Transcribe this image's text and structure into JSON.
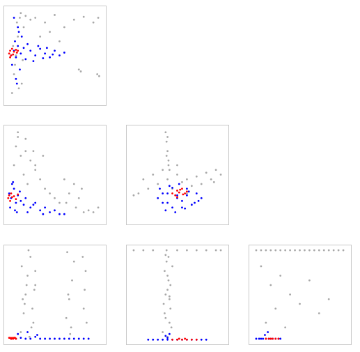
{
  "chart_data": [
    {
      "type": "scatter",
      "xlim": [
        0,
        100
      ],
      "ylim": [
        0,
        100
      ],
      "series": [
        {
          "color": "#a8a8a8",
          "x": [
            6,
            8,
            10,
            12,
            14,
            16,
            18,
            7,
            9,
            11,
            13,
            15,
            17,
            20,
            25,
            30,
            40,
            50,
            60,
            70,
            80,
            90,
            95,
            75,
            77,
            94,
            96,
            35,
            45,
            55
          ],
          "y": [
            10,
            30,
            50,
            70,
            90,
            20,
            80,
            60,
            40,
            85,
            15,
            95,
            45,
            92,
            88,
            90,
            85,
            93,
            80,
            88,
            91,
            85,
            90,
            35,
            33,
            30,
            28,
            70,
            75,
            65
          ]
        },
        {
          "color": "#0000ff",
          "x": [
            5,
            8,
            10,
            12,
            15,
            18,
            20,
            25,
            30,
            35,
            40,
            45,
            50,
            55,
            60,
            10,
            12,
            14,
            16,
            22,
            28,
            33,
            38,
            42,
            48,
            8,
            11,
            13,
            6,
            9
          ],
          "y": [
            50,
            55,
            48,
            60,
            52,
            58,
            46,
            55,
            50,
            57,
            52,
            48,
            55,
            50,
            53,
            25,
            80,
            35,
            70,
            62,
            44,
            60,
            47,
            58,
            51,
            90,
            20,
            75,
            40,
            65
          ]
        },
        {
          "color": "#ff0000",
          "x": [
            3,
            4,
            5,
            6,
            8,
            10,
            11,
            12,
            4,
            7
          ],
          "y": [
            52,
            55,
            50,
            57,
            54,
            56,
            53,
            55,
            48,
            51
          ]
        }
      ]
    },
    {
      "type": "scatter",
      "xlim": [
        0,
        100
      ],
      "ylim": [
        0,
        100
      ],
      "series": [
        {
          "color": "#a8a8a8",
          "x": [
            8,
            10,
            12,
            15,
            18,
            20,
            22,
            25,
            28,
            30,
            35,
            38,
            40,
            60,
            62,
            65,
            70,
            72,
            75,
            78,
            80,
            95,
            12,
            20,
            30,
            45,
            50,
            55,
            85,
            90
          ],
          "y": [
            60,
            80,
            95,
            70,
            50,
            88,
            40,
            65,
            75,
            55,
            45,
            70,
            35,
            45,
            20,
            30,
            40,
            15,
            25,
            35,
            10,
            15,
            90,
            75,
            60,
            30,
            25,
            20,
            12,
            10
          ]
        },
        {
          "color": "#0000ff",
          "x": [
            3,
            5,
            8,
            10,
            12,
            15,
            18,
            20,
            25,
            30,
            35,
            40,
            45,
            50,
            55,
            60,
            6,
            9,
            14,
            22,
            28,
            38,
            4,
            7,
            11
          ],
          "y": [
            30,
            25,
            35,
            20,
            28,
            22,
            18,
            25,
            15,
            20,
            12,
            15,
            10,
            12,
            8,
            8,
            40,
            12,
            32,
            10,
            18,
            8,
            15,
            42,
            10
          ]
        },
        {
          "color": "#ff0000",
          "x": [
            2,
            3,
            4,
            5,
            6,
            8,
            10,
            12
          ],
          "y": [
            25,
            28,
            22,
            30,
            26,
            27,
            24,
            29
          ]
        }
      ]
    },
    {
      "type": "scatter",
      "xlim": [
        0,
        100
      ],
      "ylim": [
        0,
        100
      ],
      "series": [
        {
          "color": "#a8a8a8",
          "x": [
            38,
            39,
            40,
            41,
            42,
            40,
            39,
            41,
            40,
            10,
            20,
            30,
            50,
            60,
            70,
            80,
            90,
            95,
            15,
            25,
            55,
            65,
            75,
            85,
            5,
            45,
            35,
            50,
            60,
            88
          ],
          "y": [
            95,
            85,
            75,
            65,
            55,
            90,
            70,
            60,
            45,
            30,
            35,
            40,
            50,
            45,
            48,
            52,
            55,
            50,
            45,
            50,
            42,
            38,
            40,
            45,
            28,
            35,
            55,
            60,
            30,
            42
          ]
        },
        {
          "color": "#0000ff",
          "x": [
            30,
            35,
            40,
            45,
            50,
            55,
            60,
            65,
            70,
            75,
            32,
            38,
            42,
            48,
            52,
            58,
            62,
            68,
            72,
            40,
            45,
            50,
            55,
            60,
            35
          ],
          "y": [
            25,
            20,
            30,
            15,
            28,
            22,
            35,
            18,
            30,
            25,
            35,
            12,
            38,
            10,
            40,
            14,
            32,
            20,
            22,
            20,
            36,
            25,
            15,
            28,
            30
          ]
        },
        {
          "color": "#ff0000",
          "x": [
            45,
            48,
            50,
            52,
            55,
            58,
            60,
            50,
            53,
            56
          ],
          "y": [
            30,
            28,
            33,
            31,
            35,
            30,
            32,
            26,
            34,
            29
          ]
        }
      ]
    },
    {
      "type": "scatter",
      "xlim": [
        0,
        100
      ],
      "ylim": [
        0,
        100
      ],
      "series": [
        {
          "color": "#a8a8a8",
          "x": [
            15,
            18,
            20,
            22,
            25,
            28,
            30,
            16,
            19,
            23,
            26,
            29,
            62,
            65,
            68,
            70,
            80,
            82,
            63,
            67,
            81,
            24,
            21,
            27,
            17,
            66,
            79,
            30,
            64,
            83
          ],
          "y": [
            10,
            30,
            50,
            70,
            90,
            20,
            60,
            80,
            40,
            97,
            15,
            55,
            25,
            45,
            65,
            85,
            35,
            75,
            95,
            15,
            55,
            5,
            60,
            35,
            45,
            8,
            90,
            75,
            50,
            20
          ]
        },
        {
          "color": "#0000ff",
          "x": [
            5,
            10,
            15,
            20,
            25,
            30,
            35,
            40,
            45,
            50,
            55,
            60,
            65,
            70,
            75,
            80,
            85,
            12,
            22,
            32
          ],
          "y": [
            3,
            3,
            4,
            3,
            3,
            5,
            3,
            3,
            3,
            3,
            3,
            3,
            3,
            3,
            3,
            3,
            3,
            8,
            10,
            7
          ]
        },
        {
          "color": "#ff0000",
          "x": [
            3,
            4,
            5,
            6,
            7,
            8,
            9,
            10
          ],
          "y": [
            4,
            4,
            3,
            4,
            3,
            4,
            4,
            3
          ]
        }
      ]
    },
    {
      "type": "scatter",
      "xlim": [
        0,
        100
      ],
      "ylim": [
        0,
        100
      ],
      "series": [
        {
          "color": "#a8a8a8",
          "x": [
            35,
            37,
            38,
            40,
            41,
            42,
            43,
            45,
            36,
            39,
            44,
            40,
            38,
            42,
            5,
            15,
            25,
            50,
            60,
            70,
            80,
            90,
            95,
            41,
            39,
            37,
            43,
            40,
            38,
            42
          ],
          "y": [
            10,
            30,
            50,
            70,
            90,
            20,
            60,
            80,
            40,
            97,
            15,
            55,
            25,
            45,
            97,
            97,
            97,
            97,
            97,
            97,
            97,
            97,
            97,
            65,
            85,
            75,
            35,
            5,
            92,
            48
          ]
        },
        {
          "color": "#0000ff",
          "x": [
            20,
            25,
            30,
            35,
            40,
            45,
            50,
            55,
            60,
            65,
            70,
            75,
            80,
            38,
            42,
            40
          ],
          "y": [
            2,
            2,
            2,
            2,
            2,
            2,
            2,
            2,
            2,
            2,
            2,
            2,
            2,
            6,
            8,
            4
          ]
        },
        {
          "color": "#ff0000",
          "x": [
            45,
            50,
            55,
            60,
            65,
            70,
            52,
            58
          ],
          "y": [
            2,
            2,
            2,
            2,
            2,
            2,
            3,
            3
          ]
        }
      ]
    },
    {
      "type": "scatter",
      "xlim": [
        0,
        100
      ],
      "ylim": [
        0,
        100
      ],
      "series": [
        {
          "color": "#a8a8a8",
          "x": [
            5,
            10,
            15,
            20,
            25,
            30,
            35,
            40,
            45,
            50,
            55,
            60,
            65,
            70,
            75,
            80,
            85,
            90,
            95,
            10,
            20,
            30,
            40,
            50,
            60,
            70,
            80,
            15,
            25,
            35
          ],
          "y": [
            97,
            97,
            97,
            97,
            97,
            97,
            97,
            97,
            97,
            97,
            97,
            97,
            97,
            97,
            97,
            97,
            97,
            97,
            97,
            80,
            60,
            70,
            50,
            40,
            65,
            30,
            45,
            20,
            35,
            15
          ]
        },
        {
          "color": "#0000ff",
          "x": [
            5,
            8,
            10,
            12,
            15,
            18,
            20,
            22,
            25,
            28,
            30,
            14,
            17
          ],
          "y": [
            3,
            3,
            3,
            3,
            3,
            3,
            3,
            3,
            3,
            3,
            3,
            7,
            10
          ]
        },
        {
          "color": "#ff0000",
          "x": [
            15,
            18,
            20,
            22,
            25,
            28
          ],
          "y": [
            3,
            3,
            3,
            3,
            3,
            3
          ]
        }
      ]
    }
  ]
}
